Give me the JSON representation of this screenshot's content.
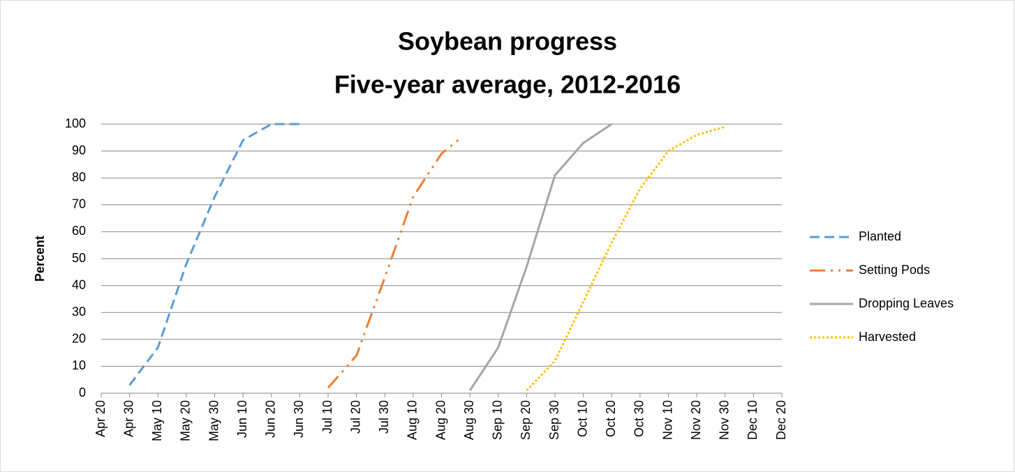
{
  "chart_data": {
    "type": "line",
    "title": [
      "Soybean progress",
      "Five-year average, 2012-2016"
    ],
    "y_label": "Percent",
    "xlim": [
      0,
      240
    ],
    "xticks": [
      {
        "value": 0,
        "label": "Apr 20"
      },
      {
        "value": 10,
        "label": "Apr 30"
      },
      {
        "value": 20,
        "label": "May 10"
      },
      {
        "value": 30,
        "label": "May 20"
      },
      {
        "value": 40,
        "label": "May 30"
      },
      {
        "value": 50,
        "label": "Jun 10"
      },
      {
        "value": 60,
        "label": "Jun 20"
      },
      {
        "value": 70,
        "label": "Jun 30"
      },
      {
        "value": 80,
        "label": "Jul 10"
      },
      {
        "value": 90,
        "label": "Jul 20"
      },
      {
        "value": 100,
        "label": "Jul 30"
      },
      {
        "value": 110,
        "label": "Aug 10"
      },
      {
        "value": 120,
        "label": "Aug 20"
      },
      {
        "value": 130,
        "label": "Aug 30"
      },
      {
        "value": 140,
        "label": "Sep 10"
      },
      {
        "value": 150,
        "label": "Sep 20"
      },
      {
        "value": 160,
        "label": "Sep 30"
      },
      {
        "value": 170,
        "label": "Oct 10"
      },
      {
        "value": 180,
        "label": "Oct 20"
      },
      {
        "value": 190,
        "label": "Oct 30"
      },
      {
        "value": 200,
        "label": "Nov 10"
      },
      {
        "value": 210,
        "label": "Nov 20"
      },
      {
        "value": 220,
        "label": "Nov 30"
      },
      {
        "value": 230,
        "label": "Dec 10"
      },
      {
        "value": 240,
        "label": "Dec 20"
      }
    ],
    "ylim": [
      0,
      100
    ],
    "yticks": [
      0,
      10,
      20,
      30,
      40,
      50,
      60,
      70,
      80,
      90,
      100
    ],
    "grid": true,
    "legend": "right",
    "series": [
      {
        "name": "Planted",
        "color": "#5b9bd5",
        "dash": "dashed",
        "x": [
          10,
          20,
          30,
          40,
          50,
          60,
          70
        ],
        "values": [
          3,
          17,
          48,
          73,
          94,
          100,
          100
        ]
      },
      {
        "name": "Setting Pods",
        "color": "#ed7d31",
        "dash": "dashdotdot",
        "x": [
          80,
          90,
          100,
          110,
          120,
          127
        ],
        "values": [
          2,
          14,
          43,
          73,
          89,
          95
        ]
      },
      {
        "name": "Dropping Leaves",
        "color": "#a5a5a5",
        "dash": "solid",
        "x": [
          130,
          140,
          150,
          160,
          170,
          180
        ],
        "values": [
          1,
          17,
          47,
          81,
          93,
          100
        ]
      },
      {
        "name": "Harvested",
        "color": "#ffc000",
        "dash": "dotted",
        "x": [
          150,
          160,
          170,
          180,
          190,
          200,
          210,
          220
        ],
        "values": [
          1,
          12,
          34,
          56,
          76,
          90,
          96,
          99
        ]
      }
    ]
  }
}
